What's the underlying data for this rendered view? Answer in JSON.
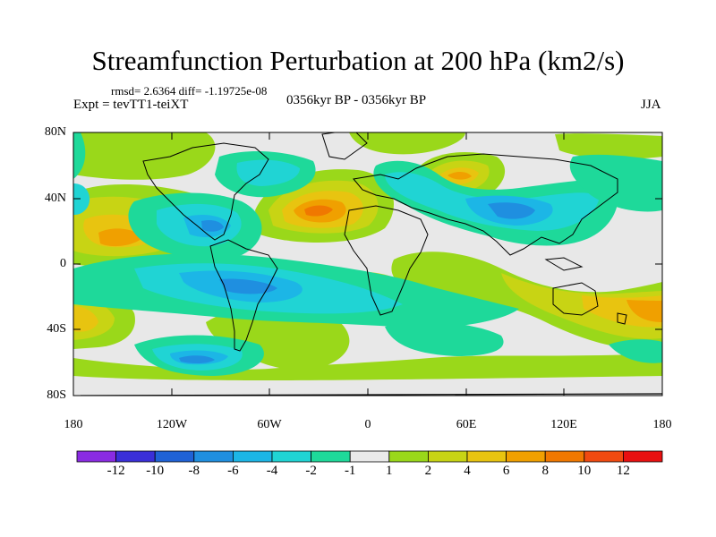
{
  "title": "Streamfunction Perturbation at 200 hPa (km2/s)",
  "stats": "rmsd= 2.6364 diff= -1.19725e-08",
  "experiment": "Expt = tevTT1-teiXT",
  "period": "0356kyr BP - 0356kyr BP",
  "season": "JJA",
  "axes": {
    "lat_labels": [
      "80N",
      "40N",
      "0",
      "40S",
      "80S"
    ],
    "lon_labels": [
      "180",
      "120W",
      "60W",
      "0",
      "60E",
      "120E",
      "180"
    ]
  },
  "colorbar": {
    "labels": [
      "-12",
      "-10",
      "-8",
      "-6",
      "-4",
      "-2",
      "-1",
      "1",
      "2",
      "4",
      "6",
      "8",
      "10",
      "12"
    ],
    "colors": [
      "#8a2be2",
      "#3a2fd8",
      "#1f62d6",
      "#1f8fe0",
      "#1cb6e6",
      "#20d4d4",
      "#1ed99a",
      "#eaeaea",
      "#9ad81a",
      "#c8d414",
      "#e8c410",
      "#f0a000",
      "#f07800",
      "#f04a10",
      "#e81010"
    ]
  },
  "map_colors": {
    "background": "#e8e8e8",
    "neg1": "#1ed99a",
    "neg2": "#20d4d4",
    "neg3": "#1cb6e6",
    "neg4": "#1f8fe0",
    "pos1": "#9ad81a",
    "pos2": "#c8d414",
    "pos3": "#e8c410",
    "pos4": "#f0a000",
    "pos5": "#f07800"
  }
}
